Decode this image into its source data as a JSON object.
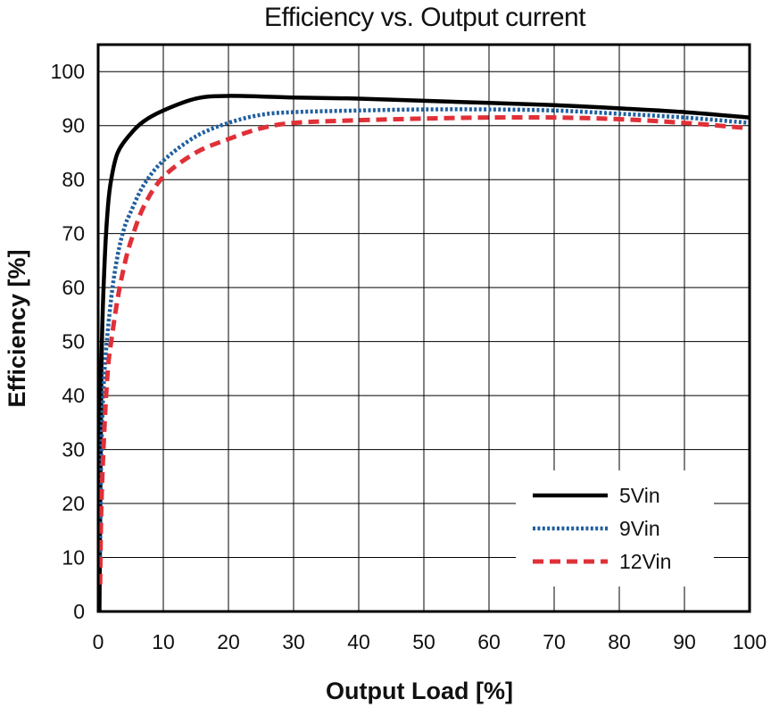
{
  "chart_data": {
    "type": "line",
    "title": "Efficiency vs. Output current",
    "xlabel": "Output Load [%]",
    "ylabel": "Efficiency [%]",
    "xlim": [
      0,
      100
    ],
    "ylim": [
      0,
      105
    ],
    "xticks": [
      "0",
      "10",
      "20",
      "30",
      "40",
      "50",
      "60",
      "70",
      "80",
      "90",
      "100"
    ],
    "yticks": [
      "0",
      "10",
      "20",
      "30",
      "40",
      "50",
      "60",
      "70",
      "80",
      "90",
      "100"
    ],
    "grid": true,
    "legend_position": "bottom-right",
    "series": [
      {
        "name": "5Vin",
        "color": "#000000",
        "style": "solid",
        "points": [
          [
            0.2,
            0
          ],
          [
            0.5,
            45
          ],
          [
            1,
            65
          ],
          [
            1.5,
            75
          ],
          [
            2,
            80
          ],
          [
            3,
            85
          ],
          [
            5,
            88.5
          ],
          [
            7,
            90.8
          ],
          [
            10,
            92.8
          ],
          [
            15,
            95
          ],
          [
            20,
            95.5
          ],
          [
            30,
            95.2
          ],
          [
            40,
            95
          ],
          [
            50,
            94.6
          ],
          [
            60,
            94.2
          ],
          [
            70,
            93.8
          ],
          [
            80,
            93.2
          ],
          [
            90,
            92.5
          ],
          [
            100,
            91.5
          ]
        ]
      },
      {
        "name": "9Vin",
        "color": "#1f5fa0",
        "style": "dotted",
        "points": [
          [
            0.3,
            10
          ],
          [
            0.5,
            30
          ],
          [
            1,
            45
          ],
          [
            2,
            58
          ],
          [
            3,
            66
          ],
          [
            4,
            71
          ],
          [
            5,
            74
          ],
          [
            7,
            79
          ],
          [
            10,
            83.5
          ],
          [
            15,
            88
          ],
          [
            20,
            90.5
          ],
          [
            25,
            92
          ],
          [
            30,
            92.5
          ],
          [
            40,
            92.8
          ],
          [
            50,
            93
          ],
          [
            60,
            93
          ],
          [
            70,
            92.8
          ],
          [
            80,
            92.2
          ],
          [
            90,
            91.5
          ],
          [
            100,
            90.5
          ]
        ]
      },
      {
        "name": "12Vin",
        "color": "#e03038",
        "style": "dashed",
        "points": [
          [
            0.3,
            5
          ],
          [
            0.5,
            20
          ],
          [
            1,
            35
          ],
          [
            1.5,
            45
          ],
          [
            2,
            50
          ],
          [
            3,
            58
          ],
          [
            4,
            64
          ],
          [
            5,
            68.5
          ],
          [
            7,
            75
          ],
          [
            10,
            80.5
          ],
          [
            15,
            85
          ],
          [
            20,
            87.5
          ],
          [
            25,
            89.5
          ],
          [
            30,
            90.5
          ],
          [
            40,
            91
          ],
          [
            50,
            91.3
          ],
          [
            60,
            91.5
          ],
          [
            70,
            91.5
          ],
          [
            80,
            91.2
          ],
          [
            90,
            90.5
          ],
          [
            100,
            89.5
          ]
        ]
      }
    ]
  }
}
